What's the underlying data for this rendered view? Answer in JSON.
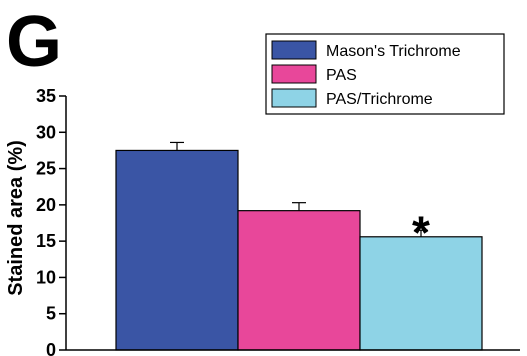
{
  "panel_label": "G",
  "chart_data": {
    "type": "bar",
    "ylabel": "Stained area (%)",
    "xlabel": "",
    "ylim": [
      0,
      35
    ],
    "yticks": [
      0,
      5,
      10,
      15,
      20,
      25,
      30,
      35
    ],
    "series": [
      {
        "name": "Mason's Trichrome",
        "value": 27.5,
        "error": 1.1,
        "color": "#3a55a5"
      },
      {
        "name": "PAS",
        "value": 19.2,
        "error": 1.1,
        "color": "#e8479a"
      },
      {
        "name": "PAS/Trichrome",
        "value": 15.6,
        "error": 0.9,
        "color": "#8ed3e6"
      }
    ],
    "annotation": "*",
    "legend_position": "top-right",
    "grid": false
  }
}
